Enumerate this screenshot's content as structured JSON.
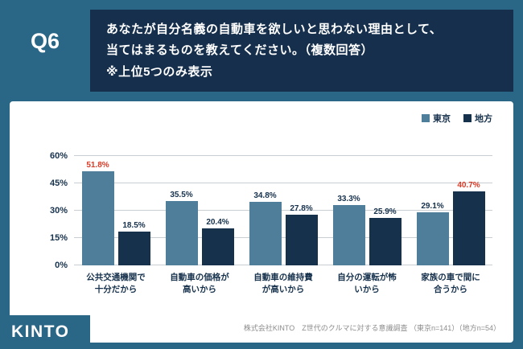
{
  "page": {
    "q_label": "Q6",
    "header_lines": [
      "あなたが自分名義の自動車を欲しいと思わない理由として、",
      "当てはまるものを教えてください。（複数回答）",
      "※上位5つのみ表示"
    ]
  },
  "legend": {
    "items": [
      {
        "label": "東京",
        "color": "#4F7E9B"
      },
      {
        "label": "地方",
        "color": "#16314C"
      }
    ]
  },
  "chart_data": {
    "type": "bar",
    "categories": [
      "公共交通機関で\n十分だから",
      "自動車の価格が\n高いから",
      "自動車の維持費\nが高いから",
      "自分の運転が怖\nいから",
      "家族の車で間に\n合うから"
    ],
    "series": [
      {
        "name": "東京",
        "color": "#4F7E9B",
        "values": [
          51.8,
          35.5,
          34.8,
          33.3,
          29.1
        ]
      },
      {
        "name": "地方",
        "color": "#16314C",
        "values": [
          18.5,
          20.4,
          27.8,
          25.9,
          40.7
        ]
      }
    ],
    "highlighted": [
      {
        "category_index": 0,
        "series_index": 0
      },
      {
        "category_index": 4,
        "series_index": 1
      }
    ],
    "ylim": [
      0,
      60
    ],
    "yticks": [
      0,
      15,
      30,
      45,
      60
    ],
    "ytick_suffix": "%",
    "grid": true,
    "legend_position": "top-right",
    "title": ""
  },
  "footer": {
    "logo": "KINTO",
    "caption": "株式会社KINTO　Z世代のクルマに対する意識調査 （東京n=141）（地方n=54）"
  },
  "colors": {
    "background": "#2A6686",
    "header_box": "#152F4D",
    "tokyo": "#4F7E9B",
    "chihou": "#16314C",
    "highlight_red": "#DB3A26",
    "text_dark": "#16314C",
    "gridline": "#C9CED3",
    "caption_gray": "#8C8C8C"
  }
}
